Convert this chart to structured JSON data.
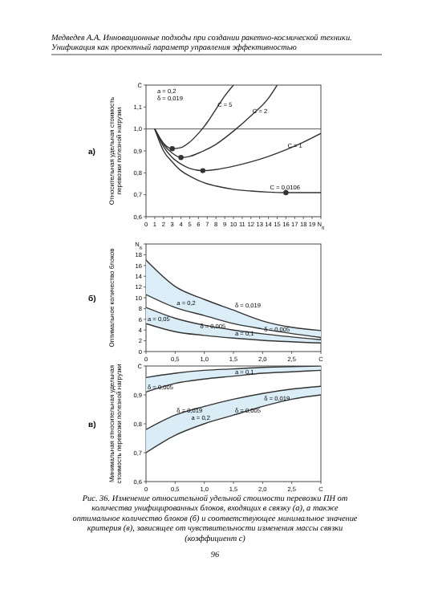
{
  "chart_data": [
    {
      "type": "line",
      "title": "Медведев А.А. Инновационные подходы при создании ракетно-космической техники. Унификация как проектный параметр управления эффективностью",
      "subtitle": "а)",
      "ylabel": "Относительная удельная стоимость перевозки полезной нагрузки",
      "xlim": [
        0,
        20
      ],
      "ylim": [
        0.6,
        1.2
      ],
      "xticks": [
        0,
        1,
        2,
        3,
        4,
        5,
        6,
        7,
        8,
        9,
        10,
        11,
        12,
        13,
        14,
        15,
        16,
        17,
        18,
        19,
        {
          "value": 20,
          "label": "N$_{б}$"
        }
      ],
      "yticks": [
        {
          "value": 0.6,
          "label": "0,6"
        },
        {
          "value": 0.7,
          "label": "0,7"
        },
        {
          "value": 0.8,
          "label": "0,8"
        },
        {
          "value": 0.9,
          "label": "0,9"
        },
        {
          "value": 1.0,
          "label": "1,0"
        },
        {
          "value": 1.1,
          "label": "1,1"
        },
        {
          "value": 1.2,
          "label": "C̄"
        }
      ],
      "ref_lines": [
        {
          "axis": "y",
          "value": 1.0,
          "color": "#555555"
        }
      ],
      "series": [
        {
          "color": "#333333",
          "x": [
            1,
            2,
            3,
            4,
            5,
            6,
            7,
            8,
            9,
            10
          ],
          "values": [
            1.0,
            0.935,
            0.91,
            0.915,
            0.94,
            0.98,
            1.03,
            1.09,
            1.15,
            1.2
          ]
        },
        {
          "color": "#333333",
          "x": [
            1,
            2,
            3,
            4,
            5,
            6,
            8,
            10,
            12,
            14,
            15
          ],
          "values": [
            1.0,
            0.93,
            0.89,
            0.87,
            0.875,
            0.89,
            0.93,
            0.99,
            1.06,
            1.14,
            1.2
          ]
        },
        {
          "color": "#333333",
          "x": [
            1,
            2,
            3,
            4,
            5,
            6.5,
            8,
            10,
            12,
            14,
            16,
            18,
            20
          ],
          "values": [
            1.0,
            0.92,
            0.87,
            0.84,
            0.82,
            0.81,
            0.815,
            0.83,
            0.85,
            0.875,
            0.905,
            0.94,
            0.98
          ]
        },
        {
          "color": "#333333",
          "x": [
            1,
            2,
            3,
            4,
            5,
            6,
            7,
            8,
            10,
            12,
            14,
            16,
            18,
            20
          ],
          "values": [
            1.0,
            0.9,
            0.85,
            0.81,
            0.785,
            0.765,
            0.75,
            0.74,
            0.725,
            0.717,
            0.712,
            0.71,
            0.71,
            0.71
          ]
        },
        {
          "type": "scatter",
          "color": "#333333",
          "x": [
            3,
            4,
            6.5,
            16
          ],
          "values": [
            0.91,
            0.87,
            0.81,
            0.71
          ]
        }
      ],
      "annotations": [
        "a = 0,2",
        "δ = 0,019",
        {
          "text": "C = 5",
          "x": 8,
          "y": 1.09
        },
        {
          "text": "C = 2",
          "x": 12,
          "y": 1.06
        },
        {
          "text": "C = 1",
          "x": 16,
          "y": 0.905
        },
        {
          "text": "C = 0,0106",
          "x": 14,
          "y": 0.712
        }
      ]
    },
    {
      "type": "line",
      "subtitle": "б)",
      "ylabel": "Оптимальное количество блоков",
      "xlim": [
        0,
        3
      ],
      "ylim": [
        0,
        20
      ],
      "xticks": [
        0,
        {
          "value": 0.5,
          "label": "0,5"
        },
        {
          "value": 1,
          "label": "1,0"
        },
        {
          "value": 1.5,
          "label": "1,5"
        },
        {
          "value": 2,
          "label": "2,0"
        },
        {
          "value": 2.5,
          "label": "2,5"
        },
        {
          "value": 3,
          "label": "C"
        }
      ],
      "yticks": [
        0,
        2,
        4,
        6,
        8,
        10,
        12,
        14,
        16,
        18,
        {
          "value": 20,
          "label": "N$_{б}$"
        }
      ],
      "x": [
        0,
        0.5,
        1,
        1.5,
        2,
        3
      ],
      "series": [
        {
          "color": "#333333",
          "values": [
            17,
            12.1,
            9.7,
            7.7,
            5.7,
            3.9
          ],
          "lower": [
            10.6,
            8.2,
            6.7,
            5.2,
            4.2,
            2.6
          ],
          "upper": [
            17,
            12.1,
            9.7,
            7.7,
            5.7,
            3.9
          ]
        },
        {
          "color": "#333333",
          "values": [
            8.2,
            6.2,
            4.9,
            4,
            3.3,
            2.2
          ],
          "lower": [
            5.2,
            3.7,
            3,
            2.5,
            2.1,
            1.6
          ],
          "upper": [
            8.2,
            6.2,
            4.9,
            4,
            3.3,
            2.2
          ]
        },
        {
          "color": "#333333",
          "values": [
            10.6,
            8.2,
            6.7,
            5.2,
            4.2,
            2.6
          ]
        },
        {
          "color": "#333333",
          "values": [
            5.2,
            3.7,
            3,
            2.5,
            2.1,
            1.6
          ]
        }
      ],
      "annotations": [
        {
          "text": "δ = 0,019",
          "x": 1.5,
          "y": 7.7
        },
        {
          "text": "a = 0,2",
          "x": 0.5,
          "y": 8.2
        },
        {
          "text": "δ = 0,005",
          "x": 2,
          "y": 3.3
        },
        {
          "text": "a = 0,05",
          "x": 0,
          "y": 5.2
        },
        {
          "text": "a = 0,1",
          "x": 1.5,
          "y": 2.5
        },
        {
          "text": "δ = 0,005",
          "x": 0.9,
          "y": 3.9
        }
      ]
    },
    {
      "type": "line",
      "subtitle": "в)",
      "ylabel": "Минимальная относительная удельная стоимость перевозки полезной нагрузки",
      "xlim": [
        0,
        3
      ],
      "ylim": [
        0.6,
        1.0
      ],
      "xticks": [
        0,
        {
          "value": 0.5,
          "label": "0,5"
        },
        {
          "value": 1,
          "label": "1,0"
        },
        {
          "value": 1.5,
          "label": "1,5"
        },
        {
          "value": 2,
          "label": "2,0"
        },
        {
          "value": 2.5,
          "label": "2,5"
        },
        {
          "value": 3,
          "label": "C"
        }
      ],
      "yticks": [
        {
          "value": 0.6,
          "label": "0,6"
        },
        {
          "value": 0.7,
          "label": "0,7"
        },
        {
          "value": 0.8,
          "label": "0,8"
        },
        {
          "value": 0.9,
          "label": "0,9"
        },
        {
          "value": 1.0,
          "label": "C̄"
        }
      ],
      "x": [
        0,
        0.5,
        1,
        1.5,
        2,
        2.5,
        3
      ],
      "series": [
        {
          "color": "#333333",
          "values": [
            0.96,
            0.975,
            0.985,
            0.99,
            0.995,
            0.998,
            1.0
          ],
          "lower": [
            0.91,
            0.94,
            0.955,
            0.965,
            0.975,
            0.98,
            0.985
          ],
          "upper": [
            0.96,
            0.975,
            0.985,
            0.99,
            0.995,
            0.998,
            1.0
          ]
        },
        {
          "color": "#333333",
          "values": [
            0.78,
            0.83,
            0.86,
            0.885,
            0.905,
            0.92,
            0.93
          ],
          "lower": [
            0.7,
            0.76,
            0.8,
            0.83,
            0.86,
            0.885,
            0.9
          ],
          "upper": [
            0.78,
            0.83,
            0.86,
            0.885,
            0.905,
            0.92,
            0.93
          ]
        },
        {
          "color": "#333333",
          "values": [
            0.91,
            0.94,
            0.955,
            0.965,
            0.975,
            0.98,
            0.985
          ]
        },
        {
          "color": "#333333",
          "values": [
            0.7,
            0.76,
            0.8,
            0.83,
            0.86,
            0.885,
            0.9
          ]
        }
      ],
      "annotations": [
        {
          "text": "δ = 0,005",
          "x": 0,
          "y": 0.91
        },
        {
          "text": "a = 0,1",
          "x": 1.5,
          "y": 0.965
        },
        {
          "text": "δ = 0,019",
          "x": 0.5,
          "y": 0.83
        },
        {
          "text": "a = 0,2",
          "x": 0.75,
          "y": 0.805
        },
        {
          "text": "δ = 0,019",
          "x": 2,
          "y": 0.872
        },
        {
          "text": "δ = 0,005",
          "x": 1.5,
          "y": 0.83
        },
        "Рис. 36. Изменение относительной удельной стоимости перевозки ПН от количества унифицированных блоков, входящих в связку (а), а также оптимальное количество блоков (б) и соответствующее минимальное значение критерия (в), зависящее от чувствительности изменения массы связки (коэффициент с)",
        "96"
      ]
    }
  ]
}
